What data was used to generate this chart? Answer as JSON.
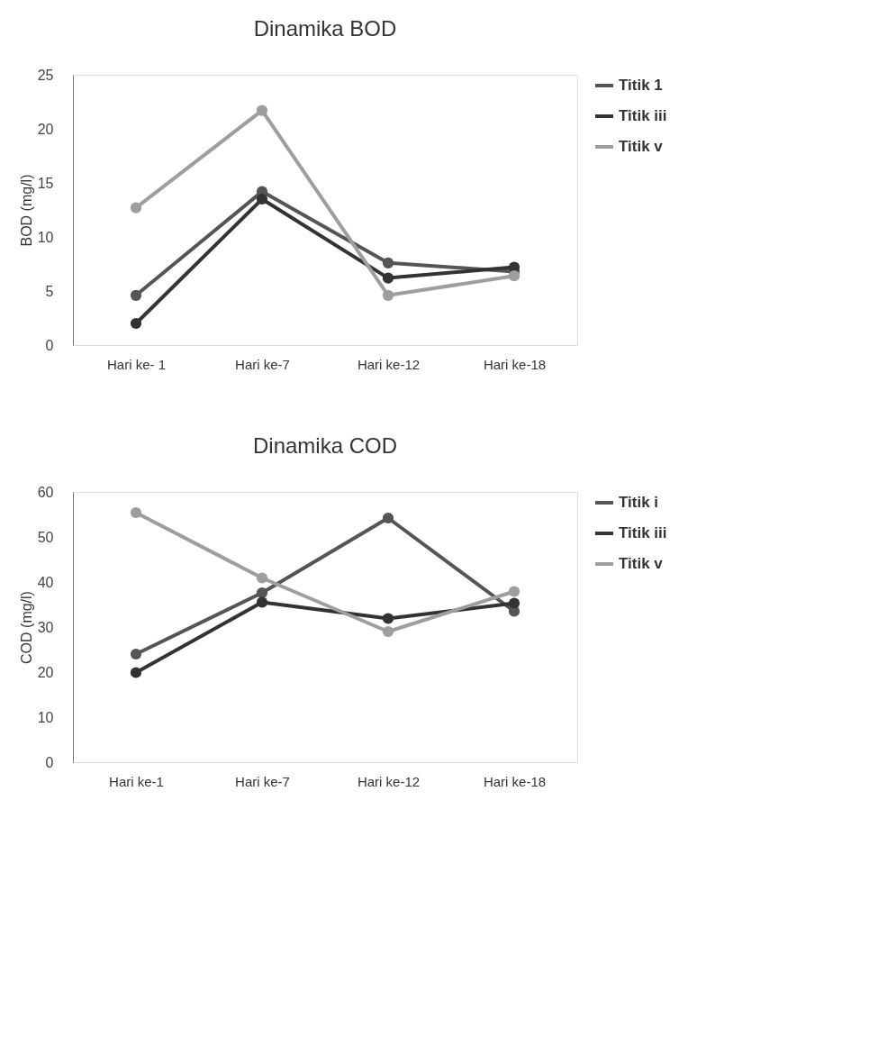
{
  "chart_data": [
    {
      "type": "line",
      "title": "Dinamika BOD",
      "ylabel": "BOD (mg/l)",
      "categories": [
        "Hari ke- 1",
        "Hari ke-7",
        "Hari ke-12",
        "Hari ke-18"
      ],
      "ylim": [
        0,
        25
      ],
      "yticks": [
        0,
        5,
        10,
        15,
        20,
        25
      ],
      "grid": false,
      "legend": "right",
      "marker": "circle",
      "line_style": "solid",
      "series": [
        {
          "name": "Titik 1",
          "color": "#555555",
          "values": [
            4.6,
            14.2,
            7.6,
            6.8
          ]
        },
        {
          "name": "Titik iii",
          "color": "#333333",
          "values": [
            2.0,
            13.5,
            6.2,
            7.2
          ]
        },
        {
          "name": "Titik v",
          "color": "#9e9e9e",
          "values": [
            12.7,
            21.7,
            4.6,
            6.4
          ]
        }
      ]
    },
    {
      "type": "line",
      "title": "Dinamika COD",
      "ylabel": "COD (mg/l)",
      "categories": [
        "Hari ke-1",
        "Hari ke-7",
        "Hari ke-12",
        "Hari ke-18"
      ],
      "ylim": [
        0,
        60
      ],
      "yticks": [
        0,
        10,
        20,
        30,
        40,
        50,
        60
      ],
      "grid": false,
      "legend": "right",
      "marker": "circle",
      "line_style": "solid",
      "series": [
        {
          "name": "Titik i",
          "color": "#555555",
          "values": [
            24.0,
            37.6,
            54.2,
            33.5
          ]
        },
        {
          "name": "Titik iii",
          "color": "#333333",
          "values": [
            19.9,
            35.5,
            31.9,
            35.3
          ]
        },
        {
          "name": "Titik v",
          "color": "#9e9e9e",
          "values": [
            55.4,
            40.9,
            29.0,
            37.9
          ]
        }
      ]
    }
  ]
}
